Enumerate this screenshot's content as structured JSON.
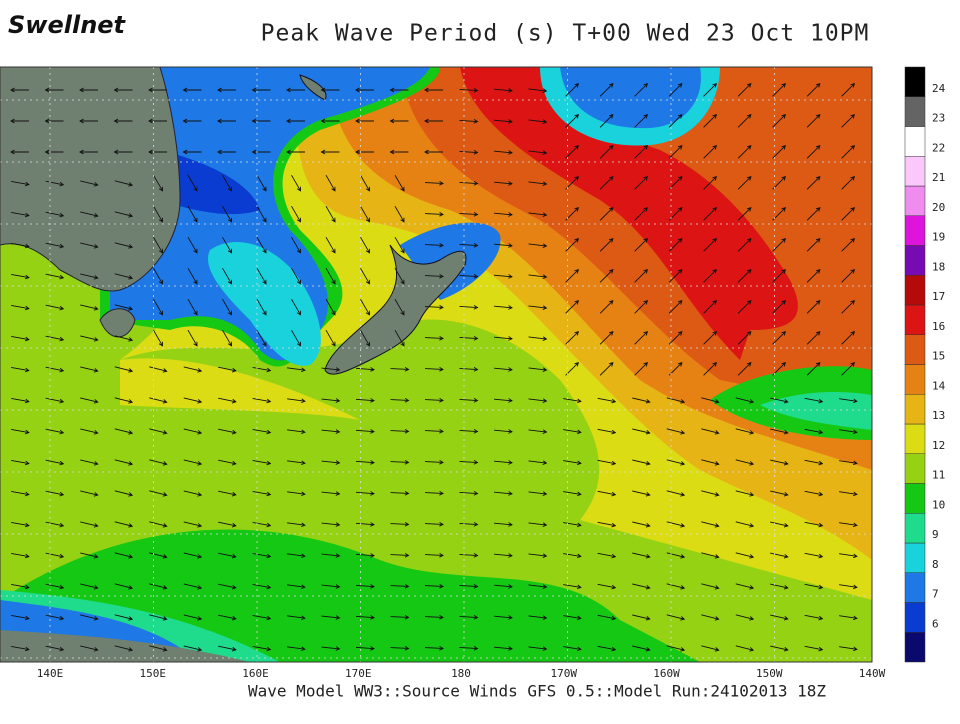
{
  "logo": "Swellnet",
  "title": "Peak Wave Period (s) T+00 Wed 23 Oct 10PM",
  "footer": "Wave Model WW3::Source Winds GFS 0.5::Model Run:24102013 18Z",
  "longitude_labels": [
    "140E",
    "150E",
    "160E",
    "170E",
    "180",
    "170W",
    "160W",
    "150W",
    "140W"
  ],
  "colorbar": {
    "labels": [
      "6",
      "7",
      "8",
      "9",
      "10",
      "11",
      "12",
      "13",
      "14",
      "15",
      "16",
      "17",
      "18",
      "19",
      "20",
      "21",
      "22",
      "23",
      "24"
    ],
    "colors": [
      "#0a0a6e",
      "#0a3cd2",
      "#1e78e6",
      "#19d2dc",
      "#1edc8c",
      "#14c814",
      "#96d214",
      "#dcdc14",
      "#e6b414",
      "#e68214",
      "#dc5a14",
      "#dc1414",
      "#b40a0a",
      "#780ab4",
      "#dc14dc",
      "#f08cf0",
      "#fac8fa",
      "#ffffff",
      "#646464",
      "#000000"
    ]
  }
}
